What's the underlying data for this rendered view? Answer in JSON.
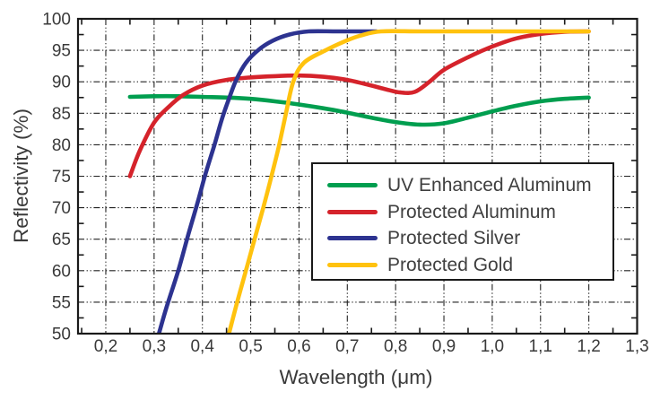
{
  "figure": {
    "background": "#ffffff",
    "frame_color": "#1a1a1a",
    "grid_color": "#222222",
    "text_color": "#3a3a3a"
  },
  "chart_data": {
    "type": "line",
    "title": "",
    "xlabel": "Wavelength (μm)",
    "ylabel": "Reflectivity (%)",
    "xlim": [
      0.1425,
      1.3
    ],
    "ylim": [
      50,
      100
    ],
    "grid": true,
    "grid_style": "dash-dot-dot",
    "legend_position": "inside lower-right",
    "x_ticks": [
      {
        "value": 0.2,
        "label": "0,2"
      },
      {
        "value": 0.3,
        "label": "0,3"
      },
      {
        "value": 0.4,
        "label": "0,4"
      },
      {
        "value": 0.5,
        "label": "0,5"
      },
      {
        "value": 0.6,
        "label": "0,6"
      },
      {
        "value": 0.7,
        "label": "0,7"
      },
      {
        "value": 0.8,
        "label": "0,8"
      },
      {
        "value": 0.9,
        "label": "0,9"
      },
      {
        "value": 1.0,
        "label": "1,0"
      },
      {
        "value": 1.1,
        "label": "1,1"
      },
      {
        "value": 1.2,
        "label": "1,2"
      },
      {
        "value": 1.3,
        "label": "1,3"
      }
    ],
    "y_ticks": [
      {
        "value": 50,
        "label": "50"
      },
      {
        "value": 55,
        "label": "55"
      },
      {
        "value": 60,
        "label": "60"
      },
      {
        "value": 65,
        "label": "65"
      },
      {
        "value": 70,
        "label": "70"
      },
      {
        "value": 75,
        "label": "75"
      },
      {
        "value": 80,
        "label": "80"
      },
      {
        "value": 85,
        "label": "85"
      },
      {
        "value": 90,
        "label": "90"
      },
      {
        "value": 95,
        "label": "95"
      },
      {
        "value": 100,
        "label": "100"
      }
    ],
    "x_minor_tick_step": 0.05,
    "y_minor_tick_step": 2.5,
    "series": [
      {
        "name": "UV Enhanced Aluminum",
        "color": "#009E4F",
        "points": [
          [
            0.25,
            87.6
          ],
          [
            0.3,
            87.7
          ],
          [
            0.35,
            87.7
          ],
          [
            0.4,
            87.6
          ],
          [
            0.45,
            87.5
          ],
          [
            0.5,
            87.3
          ],
          [
            0.55,
            86.9
          ],
          [
            0.6,
            86.4
          ],
          [
            0.65,
            85.8
          ],
          [
            0.7,
            85.1
          ],
          [
            0.75,
            84.3
          ],
          [
            0.8,
            83.6
          ],
          [
            0.85,
            83.2
          ],
          [
            0.9,
            83.4
          ],
          [
            0.95,
            84.3
          ],
          [
            1.0,
            85.3
          ],
          [
            1.05,
            86.2
          ],
          [
            1.1,
            86.9
          ],
          [
            1.15,
            87.3
          ],
          [
            1.2,
            87.5
          ]
        ]
      },
      {
        "name": "Protected Aluminum",
        "color": "#D5232B",
        "points": [
          [
            0.25,
            75.0
          ],
          [
            0.27,
            79.0
          ],
          [
            0.3,
            83.5
          ],
          [
            0.33,
            86.0
          ],
          [
            0.36,
            87.9
          ],
          [
            0.4,
            89.4
          ],
          [
            0.45,
            90.3
          ],
          [
            0.5,
            90.7
          ],
          [
            0.55,
            90.9
          ],
          [
            0.6,
            91.0
          ],
          [
            0.65,
            90.8
          ],
          [
            0.7,
            90.3
          ],
          [
            0.75,
            89.4
          ],
          [
            0.78,
            88.8
          ],
          [
            0.81,
            88.3
          ],
          [
            0.84,
            88.4
          ],
          [
            0.87,
            90.0
          ],
          [
            0.9,
            91.9
          ],
          [
            0.95,
            93.9
          ],
          [
            1.0,
            95.6
          ],
          [
            1.05,
            96.9
          ],
          [
            1.1,
            97.6
          ],
          [
            1.15,
            97.95
          ],
          [
            1.2,
            98.0
          ]
        ]
      },
      {
        "name": "Protected Silver",
        "color": "#2D3390",
        "points": [
          [
            0.31,
            50.0
          ],
          [
            0.325,
            54.0
          ],
          [
            0.35,
            60.0
          ],
          [
            0.37,
            65.5
          ],
          [
            0.39,
            70.8
          ],
          [
            0.405,
            75.0
          ],
          [
            0.425,
            80.0
          ],
          [
            0.44,
            84.0
          ],
          [
            0.455,
            87.3
          ],
          [
            0.47,
            90.3
          ],
          [
            0.49,
            93.0
          ],
          [
            0.515,
            95.0
          ],
          [
            0.545,
            96.5
          ],
          [
            0.58,
            97.5
          ],
          [
            0.62,
            98.0
          ],
          [
            0.68,
            98.0
          ],
          [
            0.76,
            98.0
          ]
        ]
      },
      {
        "name": "Protected Gold",
        "color": "#FFC20E",
        "points": [
          [
            0.455,
            50.0
          ],
          [
            0.472,
            55.0
          ],
          [
            0.49,
            60.0
          ],
          [
            0.508,
            65.0
          ],
          [
            0.526,
            70.0
          ],
          [
            0.543,
            75.0
          ],
          [
            0.559,
            80.0
          ],
          [
            0.573,
            85.0
          ],
          [
            0.588,
            90.0
          ],
          [
            0.61,
            93.0
          ],
          [
            0.655,
            95.0
          ],
          [
            0.7,
            96.6
          ],
          [
            0.73,
            97.4
          ],
          [
            0.77,
            98.0
          ],
          [
            0.85,
            98.0
          ],
          [
            0.95,
            98.0
          ],
          [
            1.05,
            98.0
          ],
          [
            1.2,
            98.0
          ]
        ]
      }
    ]
  }
}
